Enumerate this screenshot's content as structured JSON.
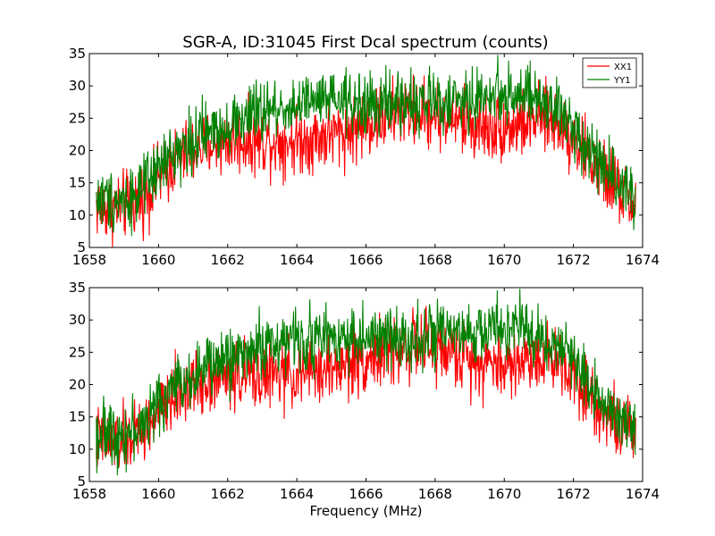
{
  "title": "SGR-A, ID:31045 First Dcal spectrum (counts)",
  "colors": {
    "XX1": "#ff0000",
    "YY1": "#008000"
  },
  "chart_data": [
    {
      "type": "line",
      "panel": "top",
      "xlim": [
        1658,
        1674
      ],
      "ylim": [
        5,
        35
      ],
      "x_ticks": [
        1658,
        1660,
        1662,
        1664,
        1666,
        1668,
        1670,
        1672,
        1674
      ],
      "y_ticks": [
        5,
        10,
        15,
        20,
        25,
        30,
        35
      ],
      "x_tick_labels": [
        "1658",
        "1660",
        "1662",
        "1664",
        "1666",
        "1668",
        "1670",
        "1672",
        "1674"
      ],
      "y_tick_labels": [
        "5",
        "10",
        "15",
        "20",
        "25",
        "30",
        "35"
      ],
      "xlabel": "",
      "ylabel": "",
      "legend": {
        "placement": "top-right",
        "entries": [
          "XX1",
          "YY1"
        ]
      },
      "series": [
        {
          "name": "XX1",
          "color": "#ff0000",
          "x": [
            1658.2,
            1658.5,
            1659.0,
            1659.5,
            1660.0,
            1660.5,
            1661.0,
            1661.5,
            1662.0,
            1662.5,
            1663.0,
            1663.5,
            1664.0,
            1664.5,
            1665.0,
            1665.5,
            1666.0,
            1666.5,
            1667.0,
            1667.5,
            1668.0,
            1668.5,
            1669.0,
            1669.5,
            1670.0,
            1670.5,
            1671.0,
            1671.5,
            1672.0,
            1672.5,
            1673.0,
            1673.5,
            1673.8
          ],
          "y": [
            11.5,
            11.0,
            11.5,
            12.5,
            15.5,
            18.5,
            20.0,
            21.0,
            21.5,
            21.5,
            21.5,
            21.5,
            21.5,
            22.0,
            22.5,
            23.0,
            24.0,
            25.0,
            26.0,
            26.0,
            25.5,
            25.0,
            24.0,
            23.5,
            23.5,
            24.0,
            25.0,
            24.5,
            22.0,
            18.5,
            15.5,
            13.0,
            11.5
          ],
          "amplitude": 2.6
        },
        {
          "name": "YY1",
          "color": "#008000",
          "x": [
            1658.2,
            1658.5,
            1659.0,
            1659.5,
            1660.0,
            1660.5,
            1661.0,
            1661.5,
            1662.0,
            1662.5,
            1663.0,
            1663.5,
            1664.0,
            1664.5,
            1665.0,
            1665.5,
            1666.0,
            1666.5,
            1667.0,
            1667.5,
            1668.0,
            1668.5,
            1669.0,
            1669.5,
            1670.0,
            1670.5,
            1671.0,
            1671.5,
            1672.0,
            1672.5,
            1673.0,
            1673.5,
            1673.8
          ],
          "y": [
            12.5,
            12.5,
            12.5,
            13.5,
            17.0,
            20.0,
            21.5,
            23.0,
            24.0,
            25.0,
            26.0,
            26.5,
            27.0,
            27.5,
            27.5,
            27.5,
            27.0,
            27.0,
            27.5,
            27.5,
            27.5,
            27.5,
            27.5,
            28.5,
            29.0,
            28.5,
            27.5,
            26.0,
            24.0,
            20.0,
            17.0,
            14.5,
            13.0
          ],
          "amplitude": 2.4
        }
      ]
    },
    {
      "type": "line",
      "panel": "bottom",
      "xlim": [
        1658,
        1674
      ],
      "ylim": [
        5,
        35
      ],
      "x_ticks": [
        1658,
        1660,
        1662,
        1664,
        1666,
        1668,
        1670,
        1672,
        1674
      ],
      "y_ticks": [
        5,
        10,
        15,
        20,
        25,
        30,
        35
      ],
      "x_tick_labels": [
        "1658",
        "1660",
        "1662",
        "1664",
        "1666",
        "1668",
        "1670",
        "1672",
        "1674"
      ],
      "y_tick_labels": [
        "5",
        "10",
        "15",
        "20",
        "25",
        "30",
        "35"
      ],
      "xlabel": "Frequency (MHz)",
      "ylabel": "",
      "series": [
        {
          "name": "XX1",
          "color": "#ff0000",
          "x": [
            1658.2,
            1658.5,
            1659.0,
            1659.5,
            1660.0,
            1660.5,
            1661.0,
            1661.5,
            1662.0,
            1662.5,
            1663.0,
            1663.5,
            1664.0,
            1664.5,
            1665.0,
            1665.5,
            1666.0,
            1666.5,
            1667.0,
            1667.5,
            1668.0,
            1668.5,
            1669.0,
            1669.5,
            1670.0,
            1670.5,
            1671.0,
            1671.5,
            1672.0,
            1672.5,
            1673.0,
            1673.5,
            1673.8
          ],
          "y": [
            11.5,
            11.0,
            11.5,
            12.5,
            15.5,
            18.5,
            20.0,
            21.0,
            21.5,
            21.5,
            21.5,
            21.5,
            21.5,
            22.0,
            22.5,
            23.0,
            24.0,
            25.0,
            25.5,
            26.0,
            25.5,
            25.0,
            24.0,
            23.5,
            23.0,
            23.5,
            24.5,
            24.0,
            22.0,
            18.5,
            15.5,
            13.0,
            11.5
          ],
          "amplitude": 2.6
        },
        {
          "name": "YY1",
          "color": "#008000",
          "x": [
            1658.2,
            1658.5,
            1659.0,
            1659.5,
            1660.0,
            1660.5,
            1661.0,
            1661.5,
            1662.0,
            1662.5,
            1663.0,
            1663.5,
            1664.0,
            1664.5,
            1665.0,
            1665.5,
            1666.0,
            1666.5,
            1667.0,
            1667.5,
            1668.0,
            1668.5,
            1669.0,
            1669.5,
            1670.0,
            1670.5,
            1671.0,
            1671.5,
            1672.0,
            1672.5,
            1673.0,
            1673.5,
            1673.8
          ],
          "y": [
            12.5,
            12.5,
            12.5,
            13.5,
            17.0,
            20.0,
            21.5,
            23.0,
            24.0,
            25.0,
            26.0,
            26.5,
            27.0,
            27.0,
            27.5,
            27.5,
            27.0,
            27.0,
            27.5,
            27.5,
            27.5,
            27.5,
            27.5,
            28.5,
            29.0,
            28.5,
            27.5,
            26.0,
            24.0,
            20.0,
            17.0,
            14.5,
            13.0
          ],
          "amplitude": 2.4
        }
      ]
    }
  ]
}
